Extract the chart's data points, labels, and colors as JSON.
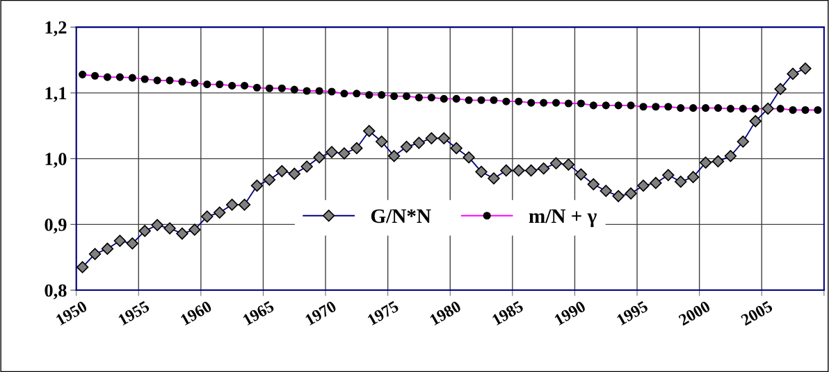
{
  "chart_data": {
    "type": "line",
    "categories": [
      "1950",
      null,
      null,
      null,
      null,
      "1955",
      null,
      null,
      null,
      null,
      "1960",
      null,
      null,
      null,
      null,
      "1965",
      null,
      null,
      null,
      null,
      "1970",
      null,
      null,
      null,
      null,
      "1975",
      null,
      null,
      null,
      null,
      "1980",
      null,
      null,
      null,
      null,
      "1985",
      null,
      null,
      null,
      null,
      "1990",
      null,
      null,
      null,
      null,
      "1995",
      null,
      null,
      null,
      null,
      "2000",
      null,
      null,
      null,
      null,
      "2005",
      null,
      null,
      null,
      null
    ],
    "series": [
      {
        "name": "G/N*N",
        "color": "#000080",
        "marker": "diamond",
        "values": [
          0.835,
          0.855,
          0.863,
          0.875,
          0.871,
          0.89,
          0.899,
          0.894,
          0.886,
          0.892,
          0.912,
          0.918,
          0.93,
          0.93,
          0.959,
          0.968,
          0.981,
          0.977,
          0.988,
          1.002,
          1.01,
          1.008,
          1.016,
          1.042,
          1.026,
          1.004,
          1.018,
          1.024,
          1.031,
          1.031,
          1.016,
          1.002,
          0.98,
          0.97,
          0.982,
          0.982,
          0.982,
          0.985,
          0.993,
          0.991,
          0.976,
          0.961,
          0.951,
          0.943,
          0.947,
          0.959,
          0.963,
          0.975,
          0.965,
          0.972,
          0.994,
          0.996,
          1.004,
          1.026,
          1.057,
          1.076,
          1.106,
          1.129,
          1.137,
          null
        ]
      },
      {
        "name": "m/N + γ",
        "color": "#ff00ff",
        "marker": "circle",
        "values": [
          1.128,
          1.126,
          1.124,
          1.124,
          1.123,
          1.121,
          1.119,
          1.119,
          1.117,
          1.115,
          1.113,
          1.113,
          1.111,
          1.111,
          1.108,
          1.107,
          1.107,
          1.105,
          1.103,
          1.103,
          1.102,
          1.099,
          1.099,
          1.097,
          1.097,
          1.095,
          1.095,
          1.093,
          1.093,
          1.091,
          1.091,
          1.089,
          1.089,
          1.089,
          1.087,
          1.087,
          1.085,
          1.085,
          1.085,
          1.084,
          1.084,
          1.081,
          1.081,
          1.081,
          1.081,
          1.079,
          1.079,
          1.079,
          1.077,
          1.077,
          1.077,
          1.077,
          1.076,
          1.076,
          1.076,
          1.076,
          1.076,
          1.074,
          1.074,
          1.074
        ]
      }
    ],
    "ylim": [
      0.8,
      1.2
    ],
    "yticks": [
      {
        "value": 0.8,
        "label": "0,8"
      },
      {
        "value": 0.9,
        "label": "0,9"
      },
      {
        "value": 1.0,
        "label": "1,0"
      },
      {
        "value": 1.1,
        "label": "1,1"
      },
      {
        "value": 1.2,
        "label": "1,2"
      }
    ],
    "grid": true,
    "legend": "center",
    "line_style": "solid"
  }
}
